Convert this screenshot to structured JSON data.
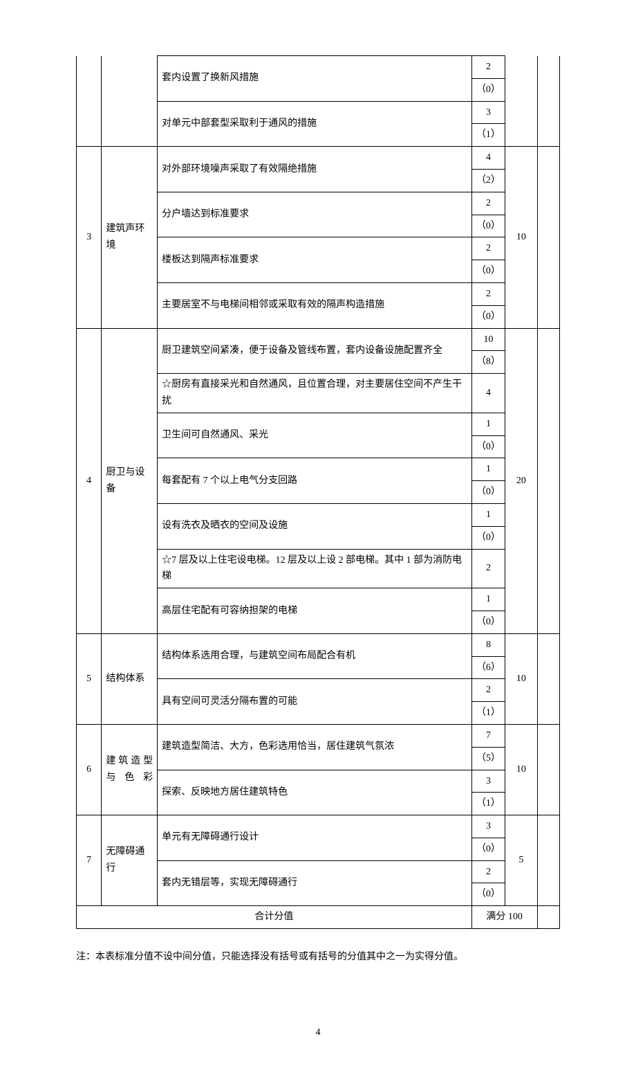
{
  "rows": [
    {
      "num": "",
      "cat": "",
      "items": [
        {
          "desc": "套内设置了换新风措施",
          "scores": [
            "2",
            "（0）"
          ]
        },
        {
          "desc": "对单元中部套型采取利于通风的措施",
          "scores": [
            "3",
            "（1）"
          ]
        }
      ],
      "total": ""
    },
    {
      "num": "3",
      "cat": "建筑声环境",
      "catClass": "cat-left",
      "items": [
        {
          "desc": "对外部环境噪声采取了有效隔绝措施",
          "scores": [
            "4",
            "（2）"
          ]
        },
        {
          "desc": "分户墙达到标准要求",
          "scores": [
            "2",
            "（0）"
          ]
        },
        {
          "desc": "楼板达到隔声标准要求",
          "scores": [
            "2",
            "（0）"
          ]
        },
        {
          "desc": "主要居室不与电梯间相邻或采取有效的隔声构造措施",
          "scores": [
            "2",
            "（0）"
          ]
        }
      ],
      "total": "10"
    },
    {
      "num": "4",
      "cat": "厨卫与设备",
      "catClass": "cat-left",
      "items": [
        {
          "desc": "厨卫建筑空间紧凑，便于设备及管线布置，套内设备设施配置齐全",
          "scores": [
            "10",
            "（8）"
          ]
        },
        {
          "desc": "☆厨房有直接采光和自然通风，且位置合理，对主要居住空间不产生干扰",
          "scores": [
            "4"
          ]
        },
        {
          "desc": "卫生间可自然通风、采光",
          "scores": [
            "1",
            "（0）"
          ]
        },
        {
          "desc": "每套配有 7 个以上电气分支回路",
          "scores": [
            "1",
            "（0）"
          ]
        },
        {
          "desc": "设有洗衣及晒衣的空间及设施",
          "scores": [
            "1",
            "（0）"
          ]
        },
        {
          "desc": "☆7 层及以上住宅设电梯。12 层及以上设 2 部电梯。其中 1 部为消防电梯",
          "scores": [
            "2"
          ]
        },
        {
          "desc": "高层住宅配有可容纳担架的电梯",
          "scores": [
            "1",
            "（0）"
          ]
        }
      ],
      "total": "20"
    },
    {
      "num": "5",
      "cat": "结构体系",
      "catClass": "cat-left",
      "items": [
        {
          "desc": "结构体系选用合理，与建筑空间布局配合有机",
          "scores": [
            "8",
            "（6）"
          ]
        },
        {
          "desc": "具有空间可灵活分隔布置的可能",
          "scores": [
            "2",
            "（1）"
          ]
        }
      ],
      "total": "10"
    },
    {
      "num": "6",
      "cat": "建筑造型与色彩",
      "items": [
        {
          "desc": "建筑造型简洁、大方，色彩选用恰当，居住建筑气氛浓",
          "scores": [
            "7",
            "（5）"
          ]
        },
        {
          "desc": "探索、反映地方居住建筑特色",
          "scores": [
            "3",
            "（1）"
          ]
        }
      ],
      "total": "10"
    },
    {
      "num": "7",
      "cat": "无障碍通行",
      "catClass": "cat-left",
      "items": [
        {
          "desc": "单元有无障碍通行设计",
          "scores": [
            "3",
            "（0）"
          ]
        },
        {
          "desc": "套内无错层等，实现无障碍通行",
          "scores": [
            "2",
            "（0）"
          ]
        }
      ],
      "total": "5"
    }
  ],
  "footer": {
    "label": "合计分值",
    "total": "满分 100"
  },
  "note": "注：本表标准分值不设中间分值，只能选择没有括号或有括号的分值其中之一为实得分值。",
  "page": "4",
  "firstRowContinuation": true
}
